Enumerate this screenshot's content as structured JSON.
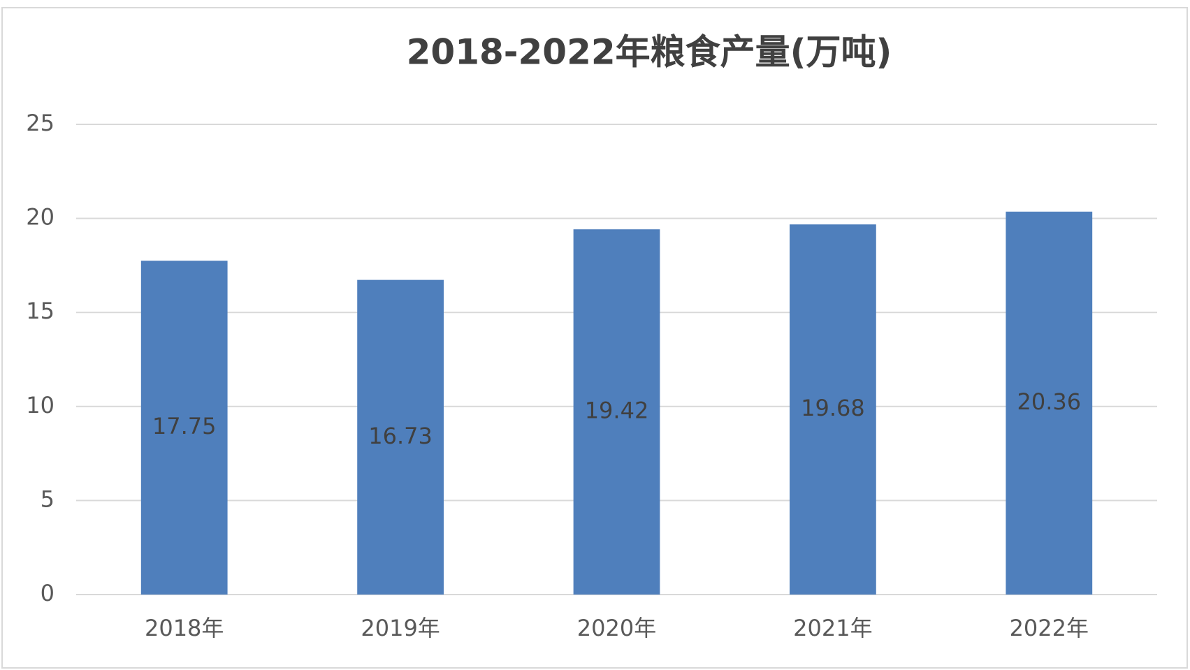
{
  "chart_data": {
    "type": "bar",
    "title": "2018-2022年粮食产量(万吨)",
    "categories": [
      "2018年",
      "2019年",
      "2020年",
      "2021年",
      "2022年"
    ],
    "values": [
      17.75,
      16.73,
      19.42,
      19.68,
      20.36
    ],
    "color": "#4f7fbc",
    "ylim": [
      0,
      25
    ],
    "yticks": [
      0,
      5,
      10,
      15,
      20,
      25
    ],
    "grid": true
  }
}
